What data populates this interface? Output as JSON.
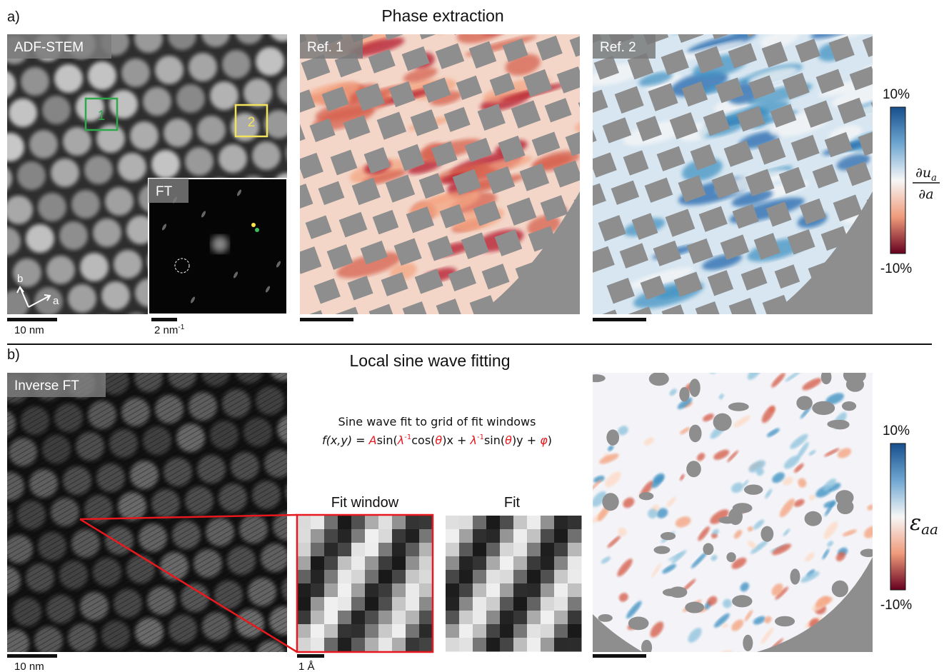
{
  "panel_a": {
    "label": "a)",
    "title": "Phase extraction",
    "adf_stem": {
      "label": "ADF-STEM",
      "box_1": "1",
      "box_2": "2",
      "axis_b": "b",
      "axis_a": "a",
      "scale_bar": "10 nm"
    },
    "ft": {
      "label": "FT",
      "scale_bar": {
        "text": "2 nm",
        "superscript": "-1"
      }
    },
    "ref_1": "Ref. 1",
    "ref_2": "Ref. 2",
    "colorbar": {
      "max": "10%",
      "min": "-10%",
      "numerator": "∂u",
      "numerator_subscript": "a",
      "denominator": "∂a"
    }
  },
  "panel_b": {
    "label": "b)",
    "title": "Local sine wave fitting",
    "inverse_ft": {
      "label": "Inverse FT",
      "scale_bar": "10 nm"
    },
    "caption": "Sine wave fit to grid of fit windows",
    "highlight_color": "#e8191e",
    "formula": [
      {
        "text": "f(x,y)",
        "italic": true
      },
      {
        "text": " = "
      },
      {
        "text": "A",
        "italic": true,
        "highlight": true
      },
      {
        "text": "sin("
      },
      {
        "text": "λ",
        "italic": true,
        "highlight": true
      },
      {
        "text": "-1",
        "superscript": true,
        "highlight": true
      },
      {
        "text": "cos("
      },
      {
        "text": "θ",
        "italic": true,
        "highlight": true
      },
      {
        "text": ")x + "
      },
      {
        "text": "λ",
        "italic": true,
        "highlight": true
      },
      {
        "text": "-1",
        "superscript": true,
        "highlight": true
      },
      {
        "text": "sin("
      },
      {
        "text": "θ",
        "italic": true,
        "highlight": true
      },
      {
        "text": ")y + "
      },
      {
        "text": "φ",
        "italic": true,
        "highlight": true
      },
      {
        "text": ")"
      }
    ],
    "fit_window": {
      "label": "Fit window",
      "scale_bar": "1 Å"
    },
    "fit": {
      "label": "Fit"
    },
    "colorbar": {
      "max": "10%",
      "min": "-10%",
      "symbol": "ε",
      "subscript": "aa"
    }
  }
}
